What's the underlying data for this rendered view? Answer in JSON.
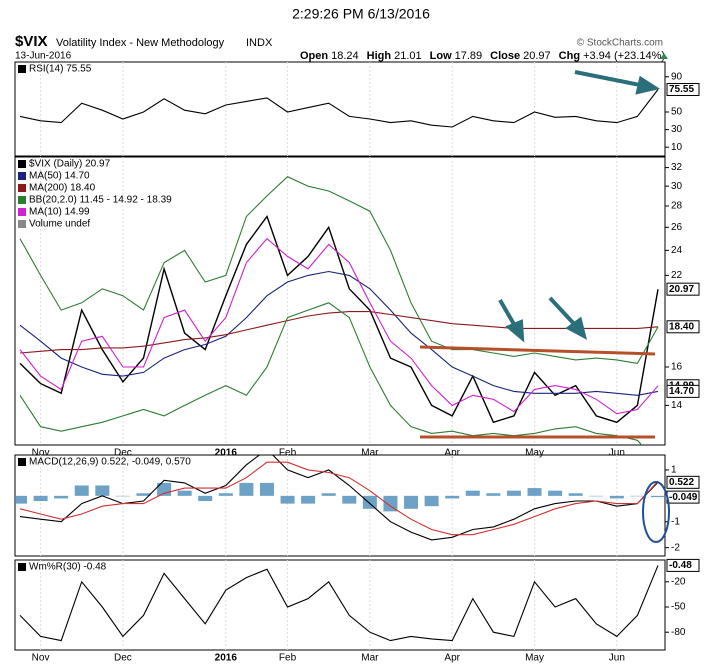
{
  "header": {
    "timestamp": "2:29:26 PM 6/13/2016",
    "symbol": "$VIX",
    "name": "Volatility Index - New Methodology",
    "exchange": "INDX",
    "date": "13-Jun-2016",
    "copyright": "© StockCharts.com",
    "quote": [
      {
        "label": "Open",
        "value": "18.24"
      },
      {
        "label": "High",
        "value": "21.01"
      },
      {
        "label": "Low",
        "value": "17.89"
      },
      {
        "label": "Close",
        "value": "20.97"
      },
      {
        "label": "Chg",
        "value": "+3.94 (+23.14%)"
      }
    ]
  },
  "chart_data": [
    {
      "type": "line",
      "ylim": [
        0,
        100
      ],
      "yticks": [
        10,
        30,
        50,
        90
      ],
      "last_value_ticks": [
        75.55
      ],
      "series": [
        {
          "name": "RSI(14) 75.55",
          "color": "#000000",
          "values": [
            45,
            40,
            38,
            60,
            52,
            42,
            50,
            65,
            52,
            48,
            58,
            62,
            66,
            50,
            55,
            60,
            45,
            42,
            38,
            40,
            35,
            33,
            45,
            40,
            38,
            50,
            44,
            45,
            40,
            38,
            45,
            75.55
          ]
        }
      ]
    },
    {
      "type": "line",
      "log": true,
      "ylim": [
        12.2,
        33.2
      ],
      "yticks": [
        14,
        16,
        22,
        24,
        26,
        28,
        30,
        32
      ],
      "last_value_ticks": [
        20.97,
        {
          "value": 18.4,
          "label": "18.40"
        },
        14.99,
        {
          "value": 14.7,
          "label": "14.70"
        }
      ],
      "categories": [
        null,
        "Nov",
        null,
        null,
        null,
        "Dec",
        null,
        null,
        null,
        null,
        "2016",
        null,
        null,
        "Feb",
        null,
        null,
        null,
        "Mar",
        null,
        null,
        null,
        "Apr",
        null,
        null,
        null,
        "May",
        null,
        null,
        null,
        "Jun",
        null,
        null
      ],
      "note": "Volume undef",
      "series": [
        {
          "name": "$VIX (Daily) 20.97",
          "color": "#000000",
          "values": [
            16.2,
            15.1,
            14.6,
            19.5,
            17.0,
            15.2,
            16.5,
            22.5,
            18.0,
            17.0,
            20.5,
            24.5,
            27.0,
            22.0,
            23.5,
            26.0,
            21.0,
            19.5,
            16.5,
            16.0,
            14.0,
            13.5,
            15.5,
            13.2,
            13.5,
            15.7,
            14.5,
            15.0,
            13.5,
            13.2,
            14.0,
            20.97
          ]
        },
        {
          "name": "MA(50) 14.70",
          "color": "#1a237e",
          "values": [
            18.5,
            17.5,
            16.5,
            16.0,
            15.6,
            15.5,
            15.7,
            16.5,
            17.0,
            17.3,
            17.8,
            19.0,
            20.5,
            21.5,
            22.0,
            22.3,
            22.0,
            21.0,
            19.5,
            18.0,
            17.0,
            16.0,
            15.5,
            15.0,
            14.7,
            14.6,
            14.6,
            14.6,
            14.7,
            14.6,
            14.5,
            14.7
          ]
        },
        {
          "name": "MA(200) 18.40",
          "color": "#8b1a1a",
          "values": [
            16.8,
            16.9,
            17.0,
            17.0,
            17.1,
            17.1,
            17.2,
            17.4,
            17.6,
            17.7,
            17.9,
            18.2,
            18.5,
            18.8,
            19.1,
            19.3,
            19.4,
            19.4,
            19.2,
            19.0,
            18.8,
            18.6,
            18.5,
            18.4,
            18.3,
            18.3,
            18.3,
            18.3,
            18.3,
            18.3,
            18.3,
            18.4
          ]
        },
        {
          "name": "BB(20,2.0) 11.45 - 14.92 - 18.39",
          "color": "#2e7d32",
          "values": [
            25,
            22,
            19.5,
            20,
            21,
            20.5,
            19.5,
            23,
            24,
            21.5,
            22,
            27,
            29,
            31,
            30,
            29.5,
            28.5,
            27.5,
            24,
            20,
            17.5,
            17,
            17,
            16.8,
            16.6,
            16.8,
            16.6,
            16.4,
            16.5,
            16.4,
            16.2,
            18.39
          ]
        },
        {
          "name": "MA(10) 14.99",
          "color": "#d020d0",
          "values": [
            17,
            15.5,
            14.8,
            17.5,
            17.8,
            16,
            16,
            19,
            19.5,
            17.5,
            19,
            23,
            25,
            23.5,
            22.5,
            24.5,
            23,
            20,
            17.5,
            16.5,
            15,
            14,
            14.5,
            14.3,
            13.7,
            14.8,
            15,
            14.8,
            14.3,
            13.6,
            13.8,
            14.99
          ]
        },
        {
          "color": "#2e7d32",
          "values": [
            14.5,
            13,
            12.8,
            13,
            13.2,
            13.5,
            13.8,
            13.5,
            14.0,
            14.5,
            15,
            14.5,
            16.0,
            19.0,
            19.5,
            20.0,
            19.0,
            16.0,
            14.0,
            13.0,
            12.7,
            12.8,
            12.6,
            12.7,
            12.6,
            12.7,
            12.9,
            13.0,
            12.7,
            12.6,
            12.4,
            11.45
          ]
        }
      ]
    },
    {
      "type": "line",
      "ylim": [
        -2.4,
        1.5
      ],
      "yticks": [
        -2,
        -1,
        1
      ],
      "last_value_ticks": [
        0.522,
        -0.049
      ],
      "series": [
        {
          "kind": "bar",
          "color": "#4a8ab8",
          "values": [
            -0.3,
            -0.2,
            -0.1,
            0.4,
            0.4,
            0,
            0.1,
            0.5,
            0.2,
            -0.2,
            0.1,
            0.5,
            0.5,
            -0.3,
            -0.3,
            0.1,
            -0.3,
            -0.5,
            -0.6,
            -0.5,
            -0.4,
            -0.1,
            0.2,
            0.1,
            0.2,
            0.3,
            0.2,
            0.1,
            0,
            -0.1,
            0,
            -0.049
          ]
        },
        {
          "name": "MACD(12,26,9) 0.522, -0.049, 0.570",
          "color": "#000000",
          "values": [
            -0.8,
            -0.9,
            -1.0,
            -0.3,
            0,
            -0.3,
            -0.2,
            0.6,
            0.5,
            0.1,
            0.4,
            1.2,
            1.8,
            1.0,
            0.7,
            1.0,
            0.4,
            -0.3,
            -1.0,
            -1.4,
            -1.7,
            -1.6,
            -1.3,
            -1.2,
            -0.9,
            -0.5,
            -0.3,
            -0.2,
            -0.2,
            -0.4,
            -0.3,
            0.522
          ]
        },
        {
          "color": "#d03030",
          "values": [
            -0.5,
            -0.7,
            -0.9,
            -0.7,
            -0.4,
            -0.3,
            -0.3,
            0.1,
            0.3,
            0.3,
            0.3,
            0.7,
            1.3,
            1.3,
            1.0,
            0.9,
            0.7,
            0.2,
            -0.4,
            -0.9,
            -1.3,
            -1.5,
            -1.5,
            -1.3,
            -1.1,
            -0.8,
            -0.5,
            -0.3,
            -0.2,
            -0.3,
            -0.3,
            0.57
          ]
        }
      ]
    },
    {
      "type": "line",
      "ylim": [
        -100,
        0
      ],
      "yticks": [
        -80,
        -50,
        -20
      ],
      "last_value_ticks": [
        -0.48
      ],
      "categories": [
        null,
        "Nov",
        null,
        null,
        null,
        "Dec",
        null,
        null,
        null,
        null,
        "2016",
        null,
        null,
        "Feb",
        null,
        null,
        null,
        "Mar",
        null,
        null,
        null,
        "Apr",
        null,
        null,
        null,
        "May",
        null,
        null,
        null,
        "Jun",
        null,
        null
      ],
      "series": [
        {
          "name": "Wm%R(30) -0.48",
          "color": "#000000",
          "values": [
            -60,
            -85,
            -90,
            -20,
            -50,
            -85,
            -60,
            -10,
            -40,
            -70,
            -30,
            -15,
            -5,
            -50,
            -40,
            -20,
            -60,
            -80,
            -90,
            -85,
            -88,
            -90,
            -40,
            -80,
            -85,
            -20,
            -50,
            -40,
            -70,
            -85,
            -60,
            -0.48
          ]
        }
      ]
    }
  ]
}
